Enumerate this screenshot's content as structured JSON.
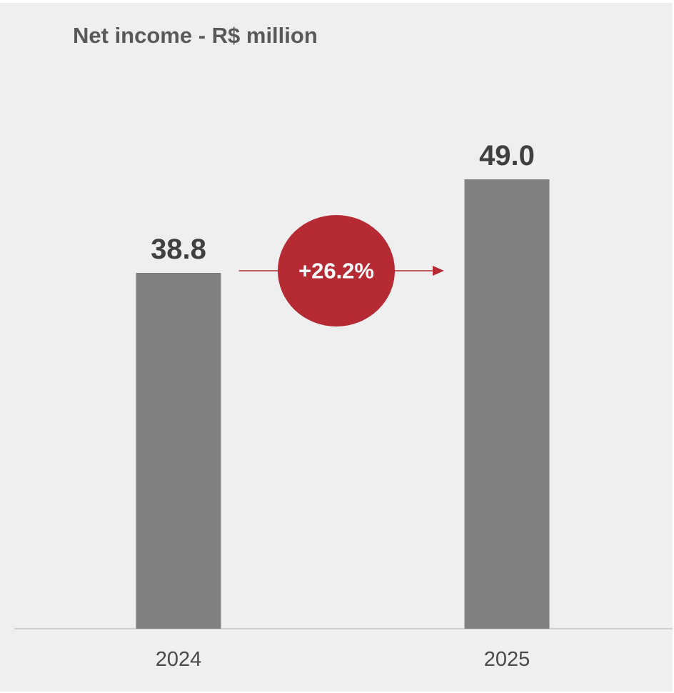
{
  "chart_data": {
    "type": "bar",
    "title": "Net income - R$ million",
    "categories": [
      "2024",
      "2025"
    ],
    "values": [
      38.8,
      49.0
    ],
    "value_labels": [
      "38.8",
      "49.0"
    ],
    "ylim": [
      0,
      55
    ],
    "grid": false,
    "legend": "none",
    "annotation": {
      "text": "+26.2%",
      "from": "2024",
      "to": "2025"
    }
  },
  "colors": {
    "background": "#efefef",
    "bar": "#808080",
    "title": "#595959",
    "value_label": "#404040",
    "annotation": "#b52a33",
    "axis": "#d0d0d0"
  }
}
